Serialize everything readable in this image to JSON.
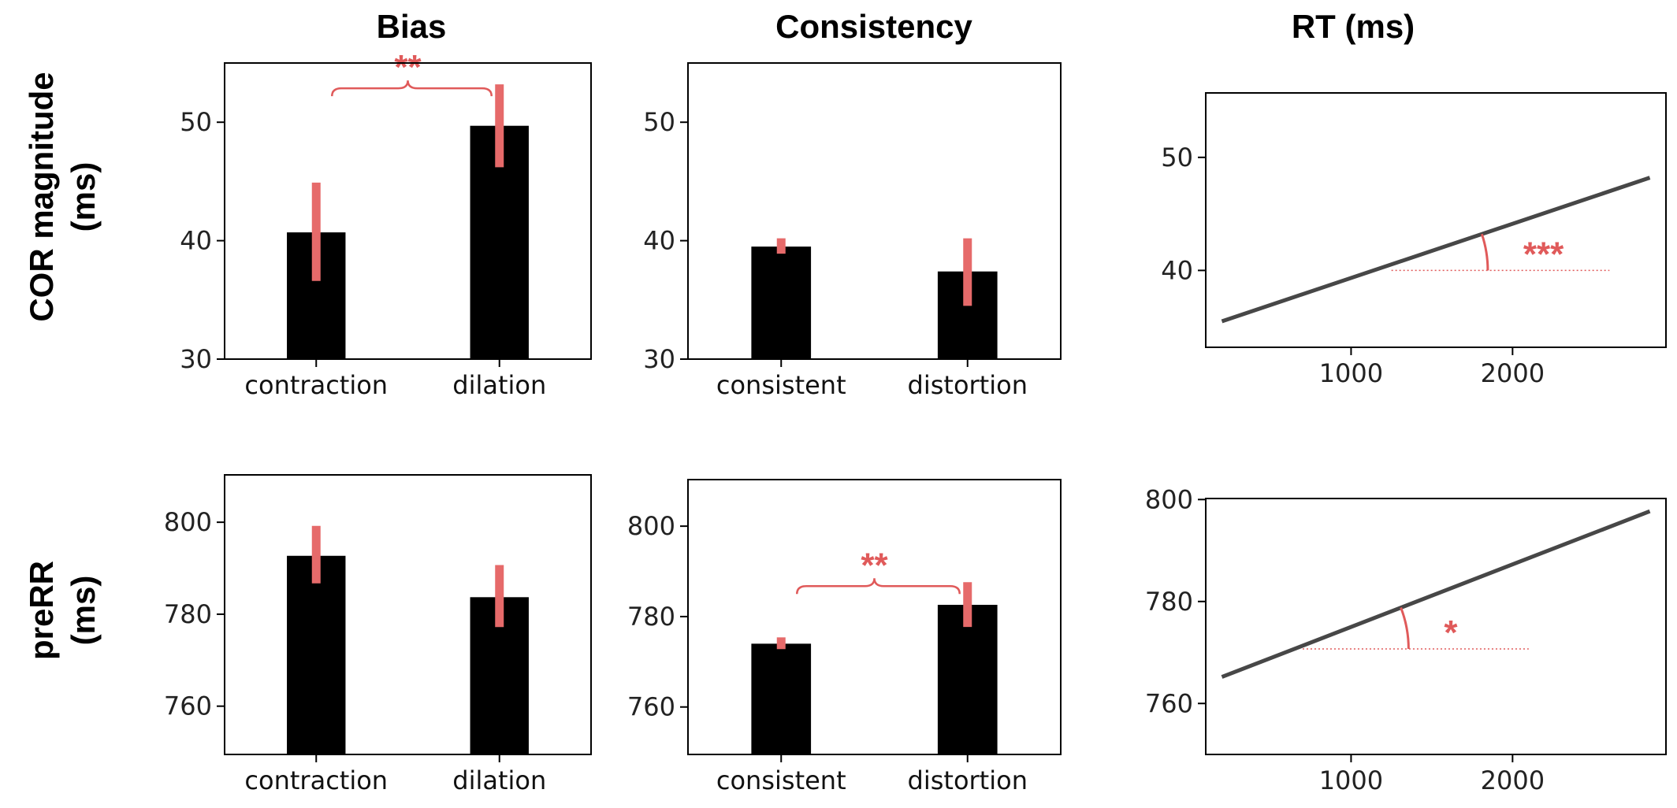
{
  "column_titles": [
    "Bias",
    "Consistency",
    "RT (ms)"
  ],
  "row_titles": [
    {
      "line1": "COR magnitude",
      "line2": "(ms)"
    },
    {
      "line1": "preRR",
      "line2": "(ms)"
    }
  ],
  "colors": {
    "bar": "#000000",
    "error": "#e66a6a",
    "annotation": "#e05a5a",
    "line": "#474747"
  },
  "chart_data": [
    {
      "type": "bar",
      "panel": "cor-bias",
      "title": "Bias",
      "categories": [
        "contraction",
        "dilation"
      ],
      "values": [
        40.7,
        49.7
      ],
      "error_low": [
        36.6,
        46.2
      ],
      "error_high": [
        44.9,
        53.2
      ],
      "ylim": [
        30,
        55
      ],
      "yticks": [
        30,
        40,
        50
      ],
      "significance": {
        "label": "**",
        "between": [
          0,
          1
        ]
      }
    },
    {
      "type": "bar",
      "panel": "cor-consistency",
      "title": "Consistency",
      "categories": [
        "consistent",
        "distortion"
      ],
      "values": [
        39.5,
        37.4
      ],
      "error_low": [
        38.9,
        34.5
      ],
      "error_high": [
        40.2,
        40.2
      ],
      "ylim": [
        30,
        55
      ],
      "yticks": [
        30,
        40,
        50
      ]
    },
    {
      "type": "line",
      "panel": "cor-rt",
      "title": "RT (ms)",
      "x": [
        200,
        2850
      ],
      "y": [
        35.5,
        48.2
      ],
      "xlim": [
        100,
        2950
      ],
      "ylim": [
        33.2,
        55.7
      ],
      "xticks": [
        1000,
        2000
      ],
      "yticks": [
        40,
        50
      ],
      "annotation": {
        "label": "***",
        "ref_y": 40,
        "ref_x": [
          1250,
          2600
        ]
      }
    },
    {
      "type": "bar",
      "panel": "prerr-bias",
      "categories": [
        "contraction",
        "dilation"
      ],
      "values": [
        792.7,
        783.7
      ],
      "error_low": [
        786.7,
        777.2
      ],
      "error_high": [
        799.2,
        790.7
      ],
      "ylim": [
        749.5,
        810.3
      ],
      "yticks": [
        760,
        780,
        800
      ]
    },
    {
      "type": "bar",
      "panel": "prerr-consistency",
      "categories": [
        "consistent",
        "distortion"
      ],
      "values": [
        774.0,
        782.6
      ],
      "error_low": [
        772.8,
        777.7
      ],
      "error_high": [
        775.4,
        787.6
      ],
      "ylim": [
        749.5,
        810.3
      ],
      "yticks": [
        760,
        780,
        800
      ],
      "significance": {
        "label": "**",
        "between": [
          0,
          1
        ]
      }
    },
    {
      "type": "line",
      "panel": "prerr-rt",
      "x": [
        200,
        2850
      ],
      "y": [
        765.2,
        797.7
      ],
      "xlim": [
        100,
        2950
      ],
      "ylim": [
        750.0,
        800.2
      ],
      "xticks": [
        1000,
        2000
      ],
      "yticks": [
        760,
        780,
        800
      ],
      "annotation": {
        "label": "*",
        "ref_y": 770.7,
        "ref_x": [
          700,
          2100
        ]
      }
    }
  ]
}
